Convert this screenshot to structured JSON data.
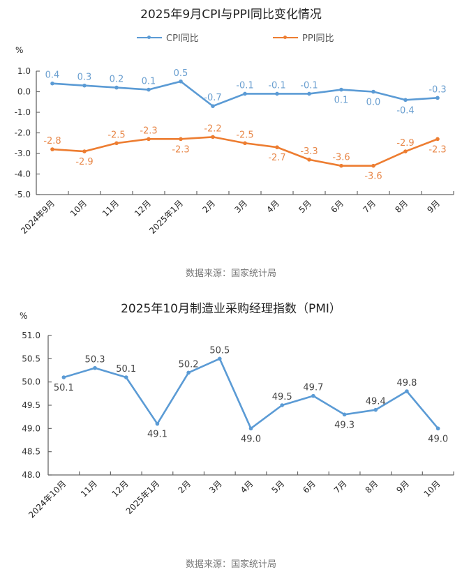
{
  "chart_data": [
    {
      "type": "line",
      "title": "2025年9月CPI与PPI同比变化情况",
      "ylabel": "%",
      "xlabel": "",
      "ylim": [
        -5.0,
        1.0
      ],
      "yticks": [
        "1.0",
        "0.0",
        "-1.0",
        "-2.0",
        "-3.0",
        "-4.0",
        "-5.0"
      ],
      "ytick_values": [
        1.0,
        0.0,
        -1.0,
        -2.0,
        -3.0,
        -4.0,
        -5.0
      ],
      "grid": false,
      "legend_position": "top",
      "categories": [
        "2024年9月",
        "10月",
        "11月",
        "12月",
        "2025年1月",
        "2月",
        "3月",
        "4月",
        "5月",
        "6月",
        "7月",
        "8月",
        "9月"
      ],
      "series": [
        {
          "name": "CPI同比",
          "color": "#5B9BD5",
          "values": [
            0.4,
            0.3,
            0.2,
            0.1,
            0.5,
            -0.7,
            -0.1,
            -0.1,
            -0.1,
            0.1,
            0.0,
            -0.4,
            -0.3
          ],
          "labels": [
            "0.4",
            "0.3",
            "0.2",
            "0.1",
            "0.5",
            "-0.7",
            "-0.1",
            "-0.1",
            "-0.1",
            "0.1",
            "0.0",
            "-0.4",
            "-0.3"
          ],
          "label_side": [
            "above",
            "above",
            "above",
            "above",
            "above",
            "above",
            "above",
            "above",
            "above",
            "below",
            "below",
            "below",
            "above"
          ]
        },
        {
          "name": "PPI同比",
          "color": "#ED7D31",
          "values": [
            -2.8,
            -2.9,
            -2.5,
            -2.3,
            -2.3,
            -2.2,
            -2.5,
            -2.7,
            -3.3,
            -3.6,
            -3.6,
            -2.9,
            -2.3
          ],
          "labels": [
            "-2.8",
            "-2.9",
            "-2.5",
            "-2.3",
            "-2.3",
            "-2.2",
            "-2.5",
            "-2.7",
            "-3.3",
            "-3.6",
            "-3.6",
            "-2.9",
            "-2.3"
          ],
          "label_side": [
            "above",
            "below",
            "above",
            "above",
            "below",
            "above",
            "above",
            "below",
            "above",
            "above",
            "below",
            "above",
            "below"
          ]
        }
      ],
      "source": "数据来源：国家统计局"
    },
    {
      "type": "line",
      "title": "2025年10月制造业采购经理指数（PMI）",
      "ylabel": "%",
      "xlabel": "",
      "ylim": [
        48.0,
        51.0
      ],
      "yticks": [
        "51.0",
        "50.5",
        "50.0",
        "49.5",
        "49.0",
        "48.5",
        "48.0"
      ],
      "ytick_values": [
        51.0,
        50.5,
        50.0,
        49.5,
        49.0,
        48.5,
        48.0
      ],
      "grid": false,
      "legend_position": "none",
      "categories": [
        "2024年10月",
        "11月",
        "12月",
        "2025年1月",
        "2月",
        "3月",
        "4月",
        "5月",
        "6月",
        "7月",
        "8月",
        "9月",
        "10月"
      ],
      "series": [
        {
          "name": "PMI",
          "color": "#5B9BD5",
          "values": [
            50.1,
            50.3,
            50.1,
            49.1,
            50.2,
            50.5,
            49.0,
            49.5,
            49.7,
            49.3,
            49.4,
            49.8,
            49.0
          ],
          "labels": [
            "50.1",
            "50.3",
            "50.1",
            "49.1",
            "50.2",
            "50.5",
            "49.0",
            "49.5",
            "49.7",
            "49.3",
            "49.4",
            "49.8",
            "49.0"
          ],
          "label_side": [
            "below",
            "above",
            "above",
            "below",
            "above",
            "above",
            "below",
            "above",
            "above",
            "below",
            "above",
            "above",
            "below"
          ]
        }
      ],
      "source": "数据来源：国家统计局"
    }
  ]
}
